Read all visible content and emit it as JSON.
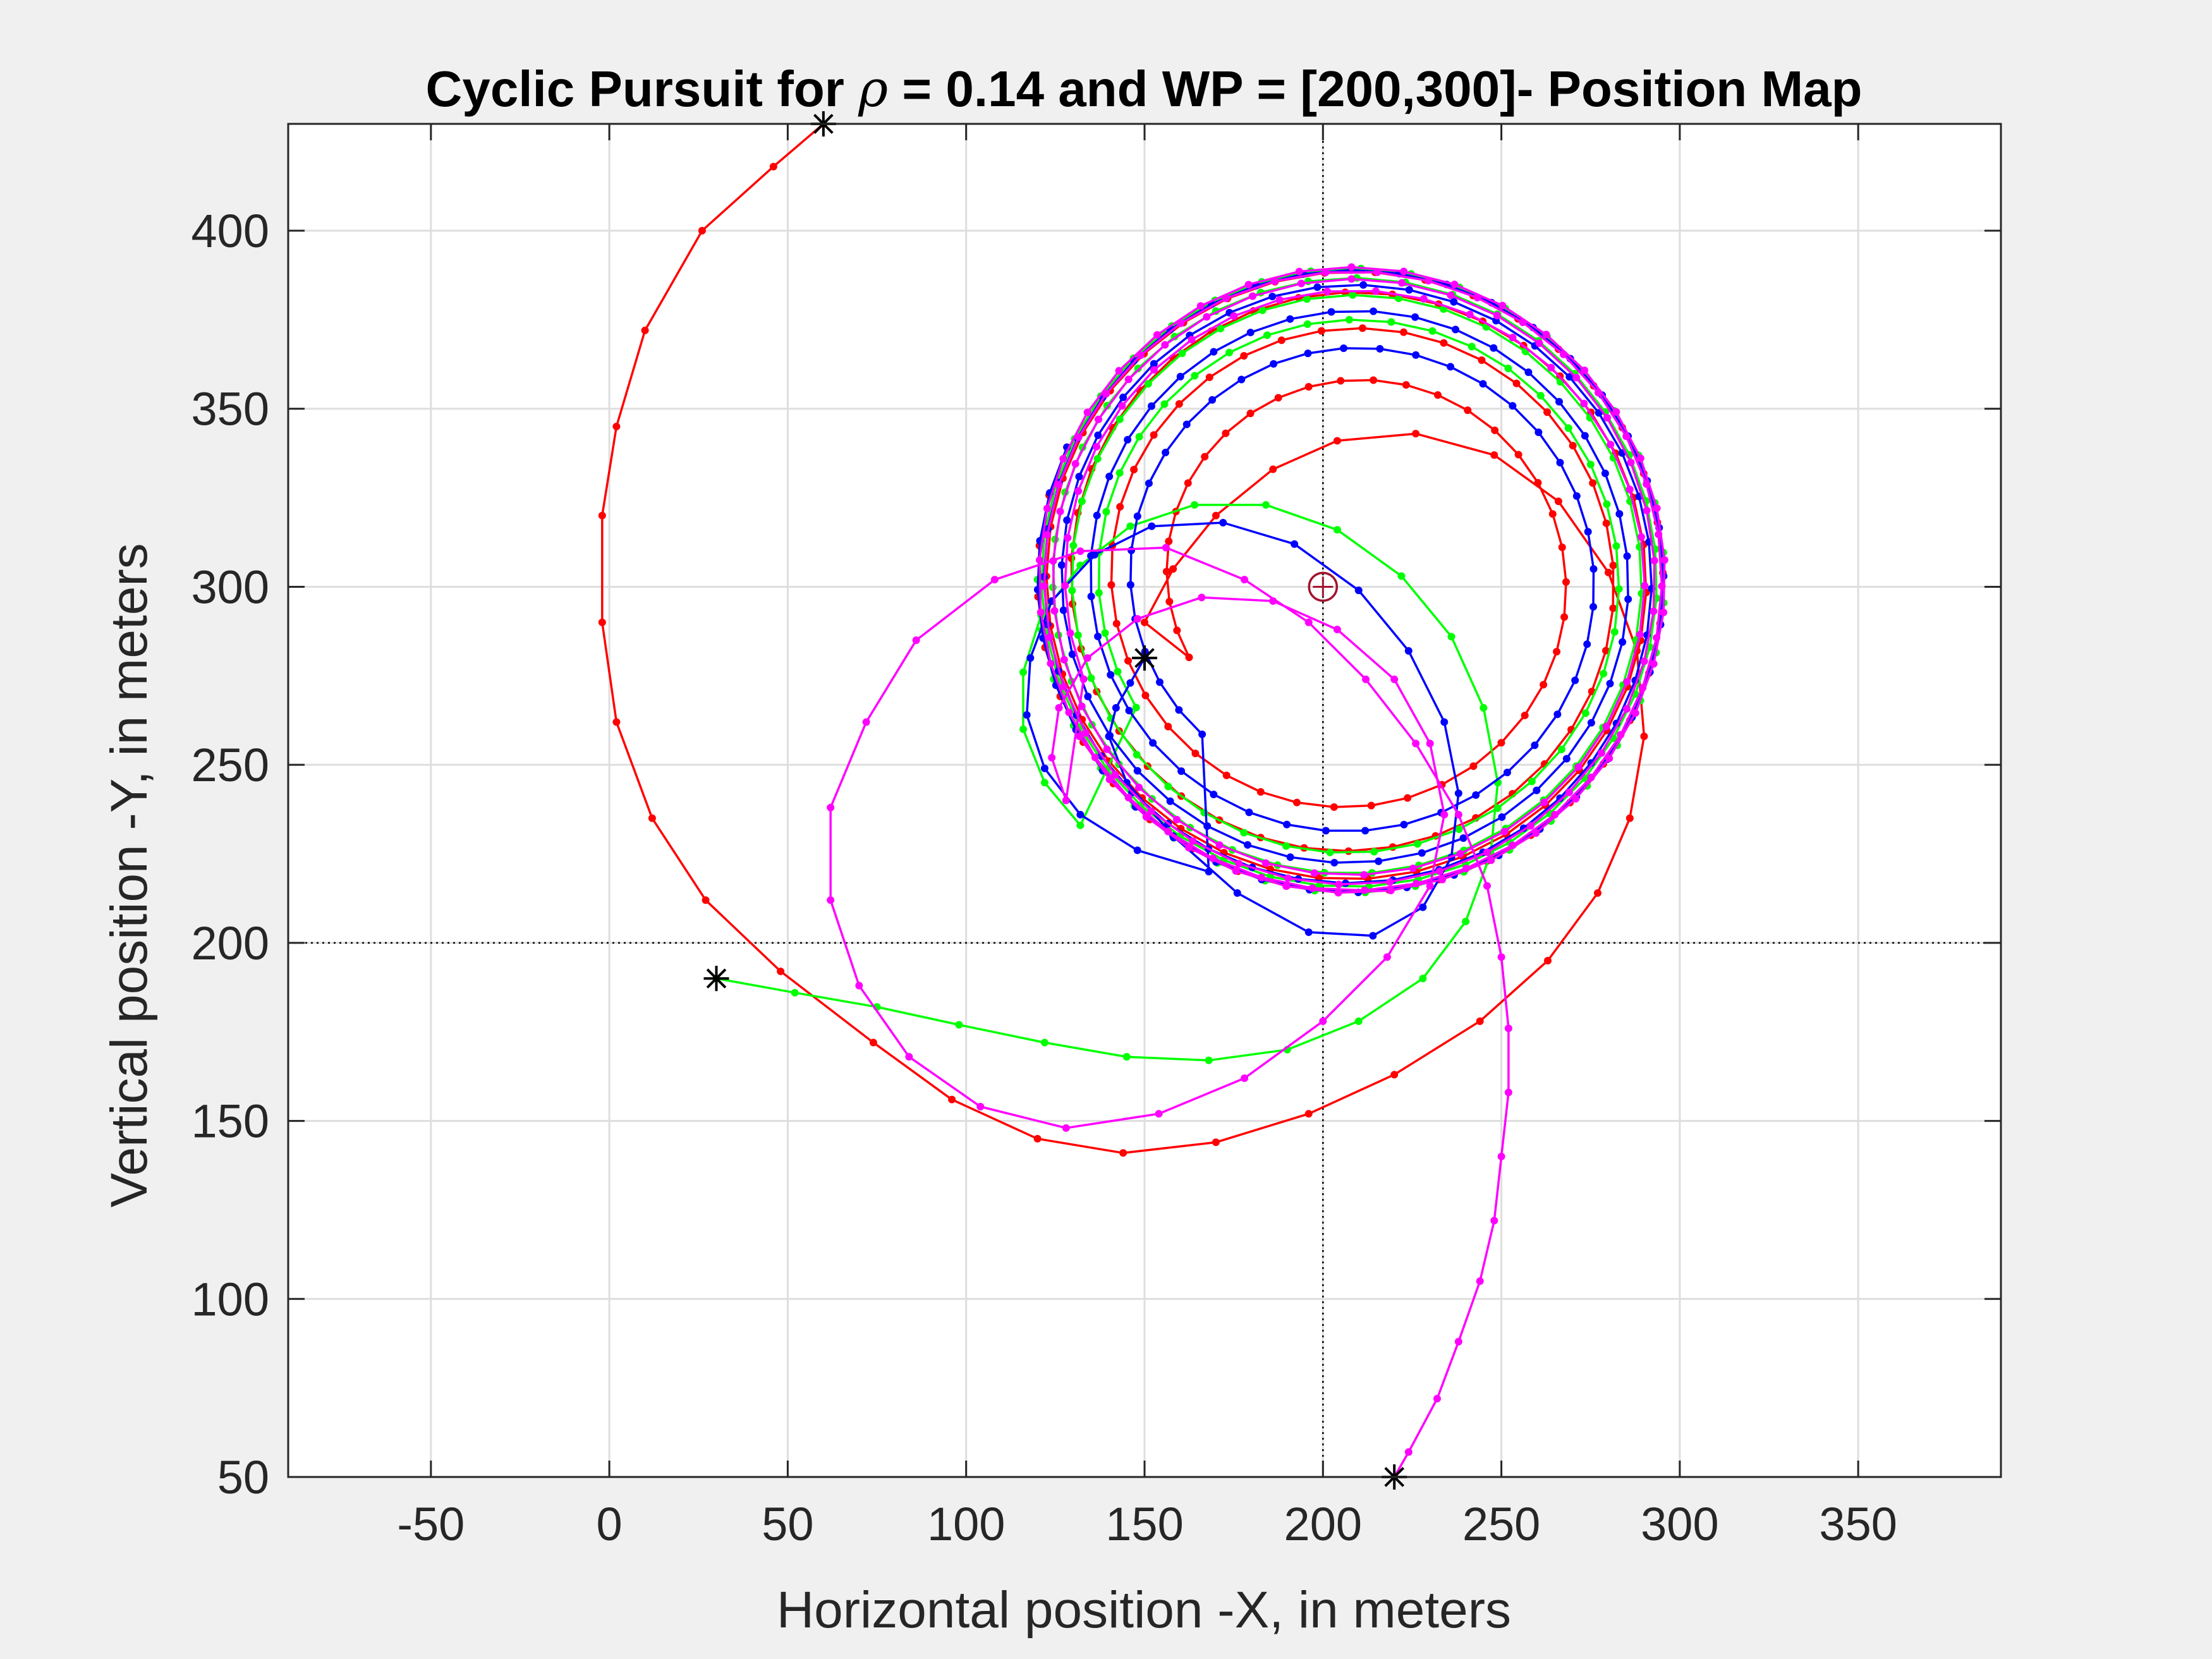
{
  "chart_data": {
    "type": "line",
    "title_prefix": "Cyclic Pursuit for ",
    "title_symbol": "ρ",
    "title_suffix": " = 0.14 and WP = [200,300]- Position Map",
    "xlabel": "Horizontal position -X, in meters",
    "ylabel": "Vertical position -Y, in meters",
    "xlim": [
      -90,
      390
    ],
    "ylim": [
      50,
      430
    ],
    "xticks": [
      -50,
      0,
      50,
      100,
      150,
      200,
      250,
      300,
      350
    ],
    "yticks": [
      50,
      100,
      150,
      200,
      250,
      300,
      350,
      400
    ],
    "grid": true,
    "waypoint": [
      200,
      300
    ],
    "orbit": {
      "center": [
        208,
        302
      ],
      "radius": 88
    },
    "start_markers": [
      [
        60,
        430
      ],
      [
        30,
        190
      ],
      [
        150,
        280
      ],
      [
        220,
        50
      ]
    ],
    "colors": {
      "red": "#ff0000",
      "green": "#00ff00",
      "blue": "#0000ff",
      "magenta": "#ff00ff",
      "marker": "#000000",
      "waypoint": "#a2142f",
      "grid": "#dedede"
    },
    "series": [
      {
        "color": "red",
        "points": [
          [
            60,
            430
          ],
          [
            46,
            418
          ],
          [
            26,
            400
          ],
          [
            10,
            372
          ],
          [
            2,
            345
          ],
          [
            -2,
            320
          ],
          [
            -2,
            290
          ],
          [
            2,
            262
          ],
          [
            12,
            235
          ],
          [
            27,
            212
          ],
          [
            48,
            192
          ],
          [
            74,
            172
          ],
          [
            96,
            156
          ],
          [
            120,
            145
          ],
          [
            144,
            141
          ],
          [
            170,
            144
          ],
          [
            196,
            152
          ],
          [
            220,
            163
          ],
          [
            244,
            178
          ],
          [
            263,
            195
          ],
          [
            277,
            214
          ],
          [
            286,
            235
          ],
          [
            290,
            258
          ],
          [
            288,
            282
          ],
          [
            280,
            304
          ],
          [
            266,
            324
          ],
          [
            248,
            337
          ],
          [
            226,
            343
          ],
          [
            204,
            341
          ],
          [
            186,
            333
          ],
          [
            170,
            320
          ],
          [
            158,
            305
          ],
          [
            150,
            290
          ]
        ],
        "spiral": {
          "center": [
            208,
            302
          ],
          "r0": 50,
          "theta0": 215,
          "sweep": 1500,
          "r1": 88,
          "n": 160
        }
      },
      {
        "color": "green",
        "points": [
          [
            30,
            190
          ],
          [
            52,
            186
          ],
          [
            75,
            182
          ],
          [
            98,
            177
          ],
          [
            122,
            172
          ],
          [
            145,
            168
          ],
          [
            168,
            167
          ],
          [
            190,
            170
          ],
          [
            210,
            178
          ],
          [
            228,
            190
          ],
          [
            240,
            206
          ],
          [
            247,
            225
          ],
          [
            249,
            245
          ],
          [
            245,
            266
          ],
          [
            236,
            286
          ],
          [
            222,
            303
          ],
          [
            204,
            316
          ],
          [
            184,
            323
          ],
          [
            164,
            323
          ],
          [
            146,
            317
          ],
          [
            132,
            306
          ],
          [
            121,
            292
          ],
          [
            116,
            276
          ],
          [
            116,
            260
          ],
          [
            122,
            245
          ],
          [
            132,
            233
          ]
        ],
        "spiral": {
          "center": [
            208,
            302
          ],
          "r0": 70,
          "theta0": 220,
          "sweep": 1480,
          "r1": 88,
          "n": 160
        }
      },
      {
        "color": "blue",
        "points": [
          [
            150,
            280
          ],
          [
            146,
            273
          ],
          [
            142,
            266
          ],
          [
            140,
            258
          ],
          [
            145,
            245
          ],
          [
            158,
            230
          ],
          [
            176,
            214
          ],
          [
            196,
            203
          ],
          [
            214,
            202
          ],
          [
            228,
            210
          ],
          [
            236,
            224
          ],
          [
            238,
            242
          ],
          [
            234,
            262
          ],
          [
            224,
            282
          ],
          [
            210,
            299
          ],
          [
            192,
            312
          ],
          [
            172,
            318
          ],
          [
            152,
            317
          ],
          [
            136,
            309
          ],
          [
            124,
            296
          ],
          [
            118,
            280
          ],
          [
            117,
            264
          ],
          [
            122,
            249
          ],
          [
            132,
            236
          ],
          [
            148,
            226
          ],
          [
            168,
            220
          ]
        ],
        "spiral": {
          "center": [
            208,
            302
          ],
          "r0": 60,
          "theta0": 235,
          "sweep": 1520,
          "r1": 88,
          "n": 170
        }
      },
      {
        "color": "magenta",
        "points": [
          [
            220,
            50
          ],
          [
            224,
            57
          ],
          [
            232,
            72
          ],
          [
            238,
            88
          ],
          [
            244,
            105
          ],
          [
            248,
            122
          ],
          [
            250,
            140
          ],
          [
            252,
            158
          ],
          [
            252,
            176
          ],
          [
            250,
            196
          ],
          [
            246,
            216
          ],
          [
            238,
            236
          ],
          [
            226,
            256
          ],
          [
            212,
            274
          ],
          [
            196,
            290
          ],
          [
            178,
            302
          ],
          [
            156,
            311
          ],
          [
            132,
            310
          ],
          [
            108,
            302
          ],
          [
            86,
            285
          ],
          [
            72,
            262
          ],
          [
            62,
            238
          ],
          [
            62,
            212
          ],
          [
            70,
            188
          ],
          [
            84,
            168
          ],
          [
            104,
            154
          ],
          [
            128,
            148
          ],
          [
            154,
            152
          ],
          [
            178,
            162
          ],
          [
            200,
            178
          ],
          [
            218,
            196
          ],
          [
            230,
            216
          ],
          [
            234,
            236
          ],
          [
            230,
            256
          ],
          [
            220,
            274
          ],
          [
            204,
            288
          ],
          [
            186,
            296
          ],
          [
            166,
            297
          ],
          [
            148,
            291
          ],
          [
            134,
            280
          ],
          [
            126,
            266
          ],
          [
            124,
            252
          ],
          [
            128,
            240
          ]
        ],
        "spiral": {
          "center": [
            208,
            302
          ],
          "r0": 80,
          "theta0": 210,
          "sweep": 1440,
          "r1": 88,
          "n": 150
        }
      }
    ]
  }
}
